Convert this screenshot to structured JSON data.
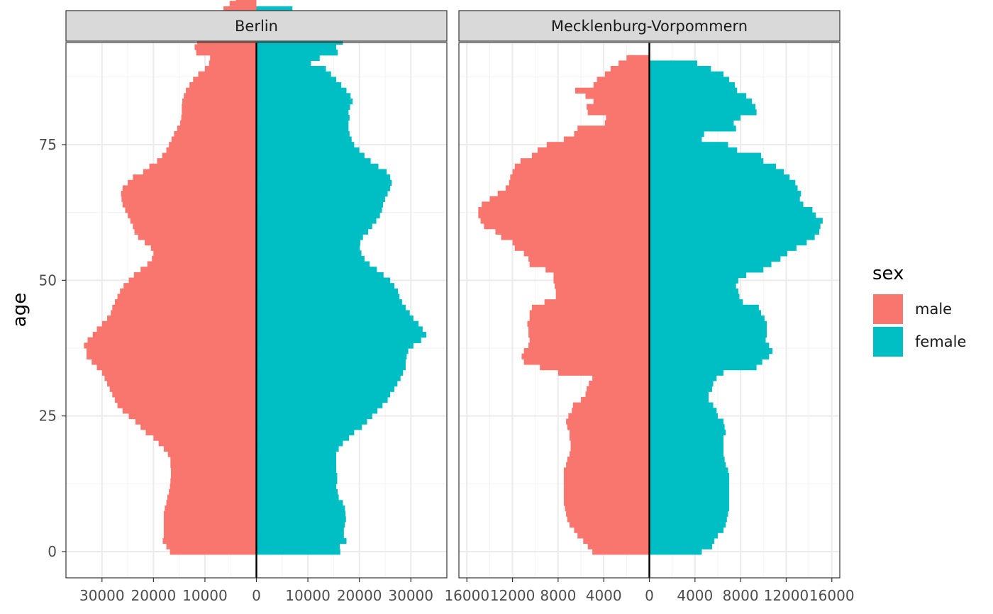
{
  "chart_data": {
    "type": "bar",
    "orientation": "horizontal",
    "subtype": "population-pyramid",
    "ylabel": "age",
    "xlabel": "",
    "y_ticks": [
      0,
      25,
      50,
      75
    ],
    "ylim": [
      0,
      89
    ],
    "legend": {
      "title": "sex",
      "position": "right",
      "entries": [
        {
          "label": "male",
          "color": "#F8766D"
        },
        {
          "label": "female",
          "color": "#00BFC4"
        }
      ]
    },
    "grid": true,
    "panels": [
      {
        "strip_label": "Berlin",
        "xlim": [
          -34000,
          34000
        ],
        "x_ticks": [
          -30000,
          -20000,
          -10000,
          0,
          10000,
          20000,
          30000
        ],
        "x_tick_labels": [
          "30000",
          "20000",
          "10000",
          "0",
          "10000",
          "20000",
          "30000"
        ],
        "series": [
          {
            "name": "male",
            "values": [
              17000,
              17500,
              18000,
              18000,
              18000,
              18000,
              18000,
              18000,
              17500,
              17000,
              17000,
              17000,
              16500,
              16500,
              16500,
              16500,
              16500,
              16500,
              17000,
              17000,
              17000,
              17000,
              18000,
              19000,
              20000,
              21000,
              23000,
              24000,
              25000,
              26000,
              27000,
              28000,
              29000,
              29500,
              30000,
              31000,
              32000,
              33000,
              33000,
              33500,
              33000,
              32000,
              31000,
              30000,
              29000,
              28000,
              28000,
              27000,
              27000,
              26000,
              25000,
              24000,
              23000,
              22000,
              21000,
              20000,
              20000,
              21000,
              22000,
              23000,
              23500,
              23500,
              24000,
              24500,
              25000,
              25500,
              26000,
              26000,
              26000,
              25500,
              24500,
              23500,
              22000,
              20000,
              18500,
              17500,
              16500,
              16000,
              15500,
              15000,
              14500,
              14500,
              14500,
              14500,
              14000,
              13500,
              13000,
              12000,
              10000,
              12000,
              11000,
              12000,
              11500,
              12000,
              10000,
              9000,
              8000,
              6500,
              5500,
              4000
            ],
            "_comment": "unused"
          }
        ]
      }
    ]
  }
}
